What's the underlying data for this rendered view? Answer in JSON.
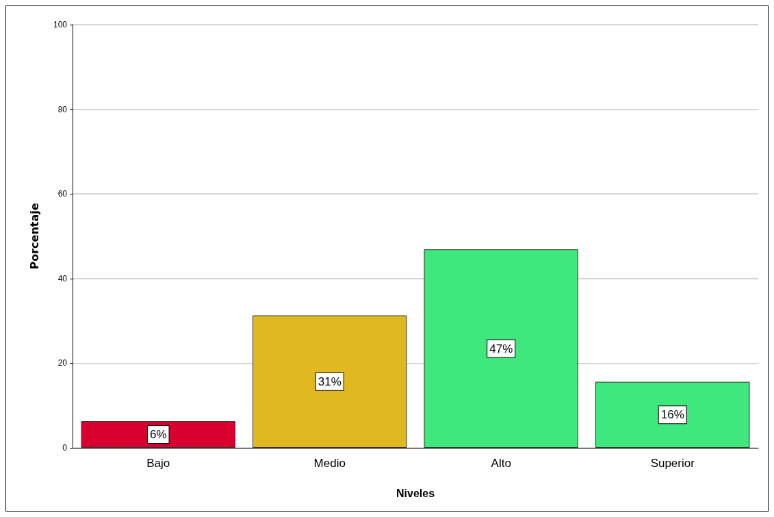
{
  "chart_data": {
    "type": "bar",
    "xlabel": "Niveles",
    "ylabel": "Porcentaje",
    "categories": [
      "Bajo",
      "Medio",
      "Alto",
      "Superior"
    ],
    "values": [
      6.3,
      31.3,
      46.9,
      15.6
    ],
    "colors": [
      "#d9002f",
      "#e0b820",
      "#3ee87c",
      "#3ee87c"
    ],
    "value_labels": [
      "6%",
      "31%",
      "47%",
      "16%"
    ],
    "ylim": [
      0,
      100
    ],
    "yticks": [
      0,
      20,
      40,
      60,
      80,
      100
    ],
    "grid": "y"
  }
}
